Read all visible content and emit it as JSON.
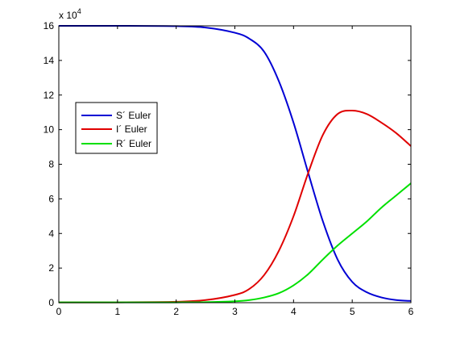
{
  "chart_data": {
    "type": "line",
    "multiplier_label": "x 10",
    "multiplier_exponent": "4",
    "xlim": [
      0,
      6
    ],
    "ylim": [
      0,
      16
    ],
    "x_ticks": [
      "0",
      "1",
      "2",
      "3",
      "4",
      "5",
      "6"
    ],
    "y_ticks": [
      "0",
      "2",
      "4",
      "6",
      "8",
      "10",
      "12",
      "14",
      "16"
    ],
    "grid": false,
    "legend_position": "middle-left",
    "series": [
      {
        "name": "S´ Euler",
        "color": "#0000d4",
        "x": [
          0,
          1,
          2,
          2.5,
          3,
          3.25,
          3.5,
          3.75,
          4,
          4.25,
          4.5,
          4.75,
          5,
          5.25,
          5.5,
          5.75,
          6
        ],
        "y": [
          16.0,
          16.0,
          15.98,
          15.9,
          15.6,
          15.25,
          14.5,
          12.8,
          10.4,
          7.5,
          4.7,
          2.5,
          1.2,
          0.6,
          0.3,
          0.15,
          0.1
        ]
      },
      {
        "name": "I´ Euler",
        "color": "#e00000",
        "x": [
          0,
          1,
          2,
          2.5,
          3,
          3.25,
          3.5,
          3.75,
          4,
          4.25,
          4.5,
          4.75,
          5,
          5.25,
          5.5,
          5.75,
          6
        ],
        "y": [
          0.02,
          0.02,
          0.05,
          0.15,
          0.45,
          0.8,
          1.6,
          3.0,
          5.0,
          7.5,
          9.7,
          10.9,
          11.1,
          10.9,
          10.4,
          9.8,
          9.05
        ]
      },
      {
        "name": "R´ Euler",
        "color": "#00e000",
        "x": [
          0,
          1,
          2,
          2.5,
          3,
          3.25,
          3.5,
          3.75,
          4,
          4.25,
          4.5,
          4.75,
          5,
          5.25,
          5.5,
          5.75,
          6
        ],
        "y": [
          0.02,
          0.02,
          0.02,
          0.03,
          0.08,
          0.15,
          0.3,
          0.55,
          1.0,
          1.65,
          2.5,
          3.3,
          4.0,
          4.7,
          5.5,
          6.2,
          6.9
        ]
      }
    ]
  }
}
